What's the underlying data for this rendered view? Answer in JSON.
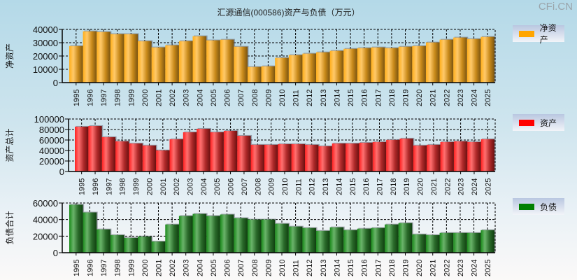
{
  "title": "汇源通信(000586)资产与负债（万元）",
  "watermark": "CFi.CN",
  "chart_data": [
    {
      "type": "bar",
      "title": "汇源通信(000586)资产与负债（万元）",
      "ylabel": "净资产",
      "legend": "净资产",
      "legend_placement": "right",
      "color": "#ffa500",
      "ylim": [
        0,
        40000
      ],
      "yticks": [
        "0",
        "10000",
        "20000",
        "30000",
        "40000"
      ],
      "grid": true,
      "categories": [
        "1995",
        "1996",
        "1997",
        "1998",
        "1999",
        "2000",
        "2001",
        "2002",
        "2003",
        "2004",
        "2005",
        "2006",
        "2007",
        "2008",
        "2009",
        "2010",
        "2011",
        "2012",
        "2013",
        "2014",
        "2015",
        "2016",
        "2017",
        "2018",
        "2019",
        "2020",
        "2021",
        "2022",
        "2023",
        "2024",
        "2025"
      ],
      "values": [
        27500,
        38600,
        38100,
        36500,
        36500,
        31200,
        26500,
        28100,
        31200,
        34900,
        31800,
        32300,
        27000,
        11800,
        12300,
        18600,
        20700,
        21800,
        22800,
        23900,
        25400,
        26000,
        26500,
        26000,
        27000,
        27500,
        30200,
        32300,
        33900,
        32800,
        34400
      ]
    },
    {
      "type": "bar",
      "ylabel": "资产总计",
      "legend": "资产",
      "legend_placement": "right",
      "color": "#ff0000",
      "ylim": [
        0,
        100000
      ],
      "yticks": [
        "0",
        "20000",
        "40000",
        "60000",
        "80000",
        "100000"
      ],
      "grid": true,
      "categories": [
        "1995",
        "1996",
        "1997",
        "1998",
        "1999",
        "2000",
        "2001",
        "2002",
        "2003",
        "2004",
        "2005",
        "2006",
        "2007",
        "2008",
        "2009",
        "2010",
        "2011",
        "2012",
        "2013",
        "2014",
        "2015",
        "2016",
        "2017",
        "2018",
        "2019",
        "2020",
        "2021",
        "2022",
        "2023",
        "2024",
        "2025"
      ],
      "values": [
        85400,
        86700,
        65500,
        57500,
        53500,
        49600,
        40300,
        61500,
        74800,
        81400,
        74800,
        77400,
        68100,
        50900,
        50900,
        52200,
        52200,
        50900,
        48200,
        53500,
        53500,
        54900,
        56200,
        60200,
        62800,
        49600,
        50900,
        56200,
        57500,
        56200,
        61500
      ]
    },
    {
      "type": "bar",
      "ylabel": "负债合计",
      "legend": "负债",
      "legend_placement": "right",
      "color": "#008000",
      "ylim": [
        0,
        60000
      ],
      "yticks": [
        "0",
        "20000",
        "40000",
        "60000"
      ],
      "grid": true,
      "categories": [
        "1995",
        "1996",
        "1997",
        "1998",
        "1999",
        "2000",
        "2001",
        "2002",
        "2003",
        "2004",
        "2005",
        "2006",
        "2007",
        "2008",
        "2009",
        "2010",
        "2011",
        "2012",
        "2013",
        "2014",
        "2015",
        "2016",
        "2017",
        "2018",
        "2019",
        "2020",
        "2021",
        "2022",
        "2023",
        "2024",
        "2025"
      ],
      "values": [
        58000,
        48600,
        28200,
        21300,
        17900,
        19600,
        13600,
        34100,
        44400,
        46900,
        44400,
        46100,
        41800,
        40100,
        40100,
        35000,
        31600,
        29900,
        26400,
        30700,
        27300,
        29000,
        29900,
        34100,
        35800,
        22200,
        21300,
        23900,
        23900,
        23900,
        27300
      ]
    }
  ]
}
